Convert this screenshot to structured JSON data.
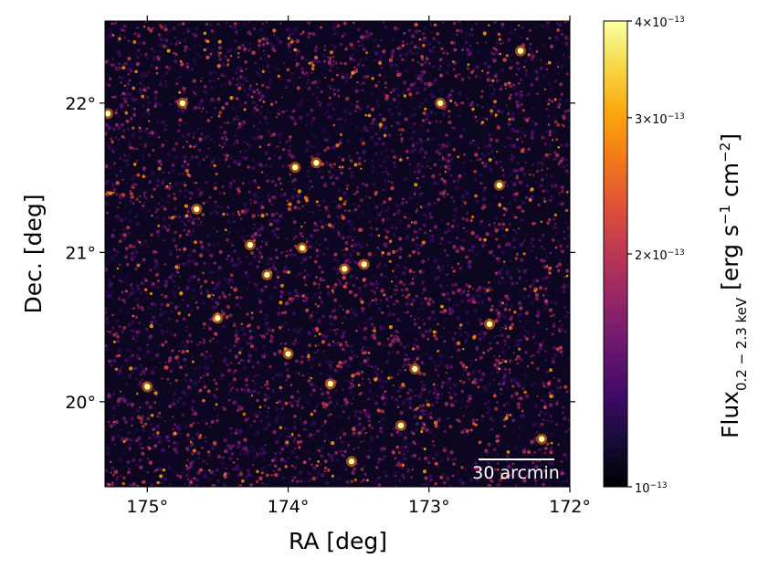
{
  "chart_data": {
    "type": "heatmap",
    "title": "",
    "xlabel": "RA [deg]",
    "ylabel": "Dec. [deg]",
    "xlim": [
      175.3,
      172.0
    ],
    "ylim": [
      19.43,
      22.55
    ],
    "x_ticks": [
      {
        "value": 175,
        "label": "175°"
      },
      {
        "value": 174,
        "label": "174°"
      },
      {
        "value": 173,
        "label": "173°"
      },
      {
        "value": 172,
        "label": "172°"
      }
    ],
    "y_ticks": [
      {
        "value": 20,
        "label": "20°"
      },
      {
        "value": 21,
        "label": "21°"
      },
      {
        "value": 22,
        "label": "22°"
      }
    ],
    "colormap": "inferno",
    "colorbar": {
      "scale": "log",
      "range": [
        1e-13,
        4e-13
      ],
      "ticks": [
        {
          "value": 1e-13,
          "label_html": "10<tspan baseline-shift=\"super\" font-size=\"9\">−13</tspan>",
          "label": "10−13"
        },
        {
          "value": 2e-13,
          "label_html": "2×10<tspan baseline-shift=\"super\" font-size=\"9\">−13</tspan>",
          "label": "2×10−13"
        },
        {
          "value": 3e-13,
          "label_html": "3×10<tspan baseline-shift=\"super\" font-size=\"9\">−13</tspan>",
          "label": "3×10−13"
        },
        {
          "value": 4e-13,
          "label_html": "4×10<tspan baseline-shift=\"super\" font-size=\"9\">−13</tspan>",
          "label": "4×10−13"
        }
      ],
      "title": "Flux0.2 − 2.3 keV [erg s−1 cm−2]"
    },
    "scalebar": {
      "label": "30 arcmin",
      "length_deg": 0.5
    },
    "bright_sources": [
      {
        "ra": 175.28,
        "dec": 21.93,
        "flux": 3.6e-13
      },
      {
        "ra": 173.8,
        "dec": 21.6,
        "flux": 3.2e-13
      },
      {
        "ra": 173.95,
        "dec": 21.57,
        "flux": 3.4e-13
      },
      {
        "ra": 174.65,
        "dec": 21.29,
        "flux": 3.1e-13
      },
      {
        "ra": 174.27,
        "dec": 21.05,
        "flux": 3.6e-13
      },
      {
        "ra": 173.9,
        "dec": 21.03,
        "flux": 3.5e-13
      },
      {
        "ra": 173.6,
        "dec": 20.89,
        "flux": 3.2e-13
      },
      {
        "ra": 173.46,
        "dec": 20.92,
        "flux": 3e-13
      },
      {
        "ra": 174.5,
        "dec": 20.56,
        "flux": 3.4e-13
      },
      {
        "ra": 172.57,
        "dec": 20.52,
        "flux": 3.4e-13
      },
      {
        "ra": 174.0,
        "dec": 20.32,
        "flux": 3.5e-13
      },
      {
        "ra": 173.2,
        "dec": 19.84,
        "flux": 3.3e-13
      },
      {
        "ra": 172.92,
        "dec": 22.0,
        "flux": 3e-13
      },
      {
        "ra": 173.7,
        "dec": 20.12,
        "flux": 2.9e-13
      },
      {
        "ra": 174.15,
        "dec": 20.85,
        "flux": 3.1e-13
      },
      {
        "ra": 172.5,
        "dec": 21.45,
        "flux": 2.8e-13
      },
      {
        "ra": 173.1,
        "dec": 20.22,
        "flux": 3e-13
      },
      {
        "ra": 175.0,
        "dec": 20.1,
        "flux": 2.8e-13
      },
      {
        "ra": 172.35,
        "dec": 22.35,
        "flux": 2.9e-13
      },
      {
        "ra": 174.75,
        "dec": 22.0,
        "flux": 2.8e-13
      },
      {
        "ra": 173.55,
        "dec": 19.6,
        "flux": 3e-13
      },
      {
        "ra": 172.2,
        "dec": 19.75,
        "flux": 2.9e-13
      }
    ]
  }
}
